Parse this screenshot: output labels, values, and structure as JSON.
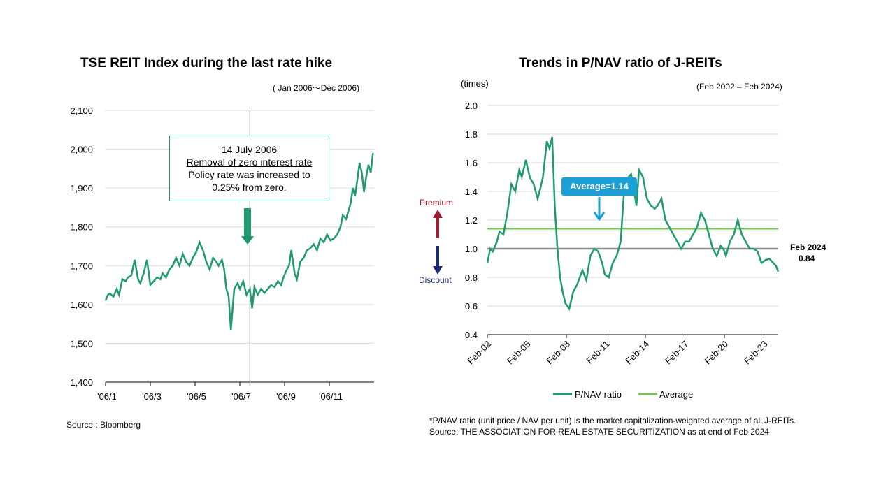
{
  "left": {
    "title": "TSE REIT Index during the last rate hike",
    "period": "( Jan 2006～Dec 2006)",
    "source": "Source : Bloomberg",
    "callout": {
      "date": "14 July 2006",
      "headline": "Removal of zero interest rate",
      "line1": "Policy rate was increased to",
      "line2": "0.25% from zero."
    }
  },
  "right": {
    "title": "Trends in P/NAV ratio of J-REITs",
    "unit": "(times)",
    "period": "(Feb 2002 – Feb 2024)",
    "average_label": "Average=1.14",
    "premium": "Premium",
    "discount": "Discount",
    "end_label": "Feb 2024",
    "end_value": "0.84",
    "footnote1": "*P/NAV ratio (unit price / NAV per unit) is the market capitalization-weighted average of all J-REITs.",
    "footnote2": "Source: THE ASSOCIATION FOR REAL ESTATE SECURITIZATION as at end of Feb 2024",
    "legend": [
      "P/NAV ratio",
      "Average"
    ]
  },
  "colors": {
    "series": "#1f9a6e",
    "average": "#77c25b",
    "parity": "#8c8c8c",
    "avgbox": "#1a9fd6",
    "premium": "#9b1c2e",
    "discount": "#1c2a6e"
  },
  "chart_data": [
    {
      "type": "line",
      "title": "TSE REIT Index during the last rate hike",
      "x_unit": "month (2006)",
      "ylim": [
        1400,
        2100
      ],
      "yticks": [
        1400,
        1500,
        1600,
        1700,
        1800,
        1900,
        2000,
        2100
      ],
      "ytick_labels": [
        "1,400",
        "1,500",
        "1,600",
        "1,700",
        "1,800",
        "1,900",
        "2,000",
        "2,100"
      ],
      "xlim": [
        1,
        13
      ],
      "xticks": [
        1,
        3,
        5,
        7,
        9,
        11
      ],
      "xtick_labels": [
        "'06/1",
        "'06/3",
        "'06/5",
        "'06/7",
        "'06/9",
        "'06/11"
      ],
      "event_x": 7.45,
      "grid": "horizontal",
      "series": [
        {
          "name": "TSE REIT Index",
          "x": [
            1.0,
            1.1,
            1.2,
            1.35,
            1.5,
            1.6,
            1.75,
            1.9,
            2.0,
            2.15,
            2.3,
            2.45,
            2.55,
            2.7,
            2.85,
            3.0,
            3.15,
            3.3,
            3.45,
            3.55,
            3.7,
            3.85,
            4.0,
            4.15,
            4.3,
            4.45,
            4.6,
            4.75,
            4.9,
            5.05,
            5.2,
            5.35,
            5.5,
            5.65,
            5.8,
            5.95,
            6.05,
            6.2,
            6.3,
            6.4,
            6.5,
            6.6,
            6.75,
            6.9,
            7.0,
            7.15,
            7.3,
            7.45,
            7.55,
            7.65,
            7.8,
            7.95,
            8.1,
            8.25,
            8.4,
            8.55,
            8.7,
            8.85,
            8.95,
            9.1,
            9.2,
            9.3,
            9.45,
            9.55,
            9.7,
            9.85,
            10.0,
            10.15,
            10.3,
            10.45,
            10.6,
            10.75,
            10.9,
            11.05,
            11.2,
            11.35,
            11.5,
            11.6,
            11.75,
            11.85,
            11.95,
            12.05,
            12.15,
            12.25,
            12.35,
            12.45,
            12.55,
            12.65,
            12.75,
            12.85,
            12.95
          ],
          "values": [
            1610,
            1625,
            1628,
            1620,
            1640,
            1625,
            1665,
            1660,
            1670,
            1675,
            1715,
            1665,
            1655,
            1680,
            1715,
            1650,
            1660,
            1670,
            1665,
            1680,
            1670,
            1690,
            1700,
            1720,
            1700,
            1730,
            1710,
            1700,
            1720,
            1735,
            1760,
            1740,
            1710,
            1690,
            1720,
            1710,
            1700,
            1715,
            1690,
            1640,
            1620,
            1535,
            1640,
            1655,
            1640,
            1660,
            1625,
            1640,
            1590,
            1645,
            1625,
            1640,
            1630,
            1640,
            1650,
            1645,
            1660,
            1650,
            1670,
            1690,
            1700,
            1740,
            1680,
            1665,
            1710,
            1720,
            1740,
            1745,
            1755,
            1740,
            1770,
            1760,
            1780,
            1765,
            1770,
            1780,
            1800,
            1830,
            1820,
            1840,
            1860,
            1900,
            1880,
            1920,
            1965,
            1940,
            1890,
            1930,
            1960,
            1940,
            1990
          ]
        }
      ]
    },
    {
      "type": "line",
      "title": "Trends in P/NAV ratio of J-REITs",
      "ylabel": "(times)",
      "ylim": [
        0.4,
        2.0
      ],
      "yticks": [
        0.4,
        0.6,
        0.8,
        1.0,
        1.2,
        1.4,
        1.6,
        1.8,
        2.0
      ],
      "ytick_labels": [
        "0.4",
        "0.6",
        "0.8",
        "1.0",
        "1.2",
        "1.4",
        "1.6",
        "1.8",
        "2.0"
      ],
      "xlim": [
        2002.08,
        2024.17
      ],
      "xticks": [
        2002.08,
        2005.08,
        2008.08,
        2011.08,
        2014.08,
        2017.08,
        2020.08,
        2023.08
      ],
      "xtick_labels": [
        "Feb-02",
        "Feb-05",
        "Feb-08",
        "Feb-11",
        "Feb-14",
        "Feb-17",
        "Feb-20",
        "Feb-23"
      ],
      "grid": "horizontal",
      "series": [
        {
          "name": "P/NAV ratio",
          "x": [
            2002.08,
            2002.3,
            2002.5,
            2002.8,
            2003.0,
            2003.3,
            2003.6,
            2003.9,
            2004.2,
            2004.5,
            2004.7,
            2005.0,
            2005.3,
            2005.6,
            2005.9,
            2006.1,
            2006.3,
            2006.6,
            2006.8,
            2007.0,
            2007.2,
            2007.4,
            2007.6,
            2007.8,
            2008.0,
            2008.3,
            2008.6,
            2008.9,
            2009.1,
            2009.3,
            2009.6,
            2009.9,
            2010.2,
            2010.5,
            2010.8,
            2011.0,
            2011.3,
            2011.6,
            2011.9,
            2012.2,
            2012.5,
            2012.8,
            2013.0,
            2013.2,
            2013.4,
            2013.6,
            2013.9,
            2014.2,
            2014.5,
            2014.8,
            2015.0,
            2015.3,
            2015.6,
            2015.9,
            2016.2,
            2016.5,
            2016.8,
            2017.1,
            2017.4,
            2017.7,
            2018.0,
            2018.3,
            2018.6,
            2018.9,
            2019.2,
            2019.5,
            2019.8,
            2020.0,
            2020.2,
            2020.5,
            2020.8,
            2021.1,
            2021.4,
            2021.7,
            2022.0,
            2022.3,
            2022.6,
            2022.9,
            2023.2,
            2023.5,
            2023.8,
            2024.0,
            2024.17
          ],
          "values": [
            0.9,
            1.0,
            0.98,
            1.05,
            1.12,
            1.1,
            1.25,
            1.45,
            1.4,
            1.55,
            1.5,
            1.62,
            1.5,
            1.45,
            1.35,
            1.42,
            1.5,
            1.75,
            1.7,
            1.78,
            1.3,
            1.0,
            0.8,
            0.7,
            0.62,
            0.58,
            0.7,
            0.75,
            0.8,
            0.85,
            0.78,
            0.95,
            1.0,
            0.98,
            0.9,
            0.82,
            0.8,
            0.9,
            0.95,
            1.05,
            1.45,
            1.5,
            1.52,
            1.42,
            1.3,
            1.55,
            1.5,
            1.35,
            1.3,
            1.28,
            1.3,
            1.35,
            1.2,
            1.15,
            1.1,
            1.05,
            1.0,
            1.05,
            1.05,
            1.1,
            1.15,
            1.25,
            1.2,
            1.1,
            1.0,
            0.95,
            1.02,
            1.0,
            0.95,
            1.05,
            1.1,
            1.2,
            1.1,
            1.05,
            1.0,
            1.0,
            0.98,
            0.9,
            0.92,
            0.93,
            0.9,
            0.88,
            0.84
          ]
        },
        {
          "name": "Average",
          "value": 1.14
        }
      ],
      "reference_line": 1.0
    }
  ]
}
